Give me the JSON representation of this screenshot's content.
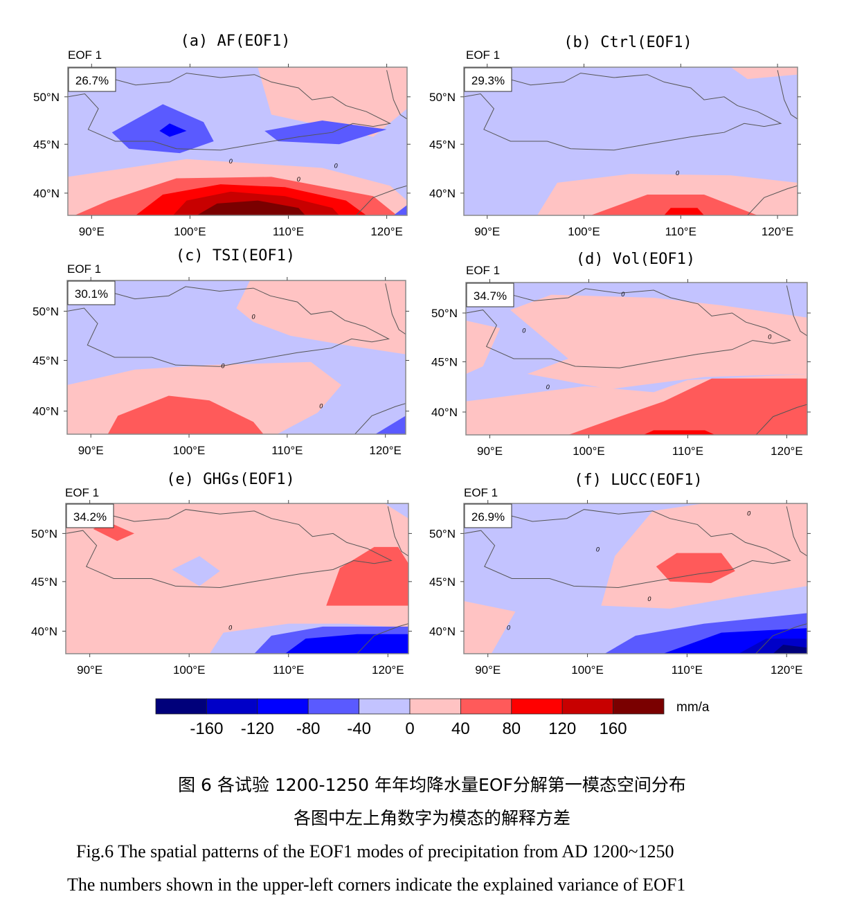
{
  "chart_data": {
    "type": "heatmap",
    "units": "mm/a",
    "eof_label": "EOF 1",
    "x_ticks": [
      "90°E",
      "100°E",
      "110°E",
      "120°E"
    ],
    "y_ticks": [
      "50°N",
      "45°N",
      "40°N"
    ],
    "xlim": [
      88,
      122.5
    ],
    "ylim": [
      37.5,
      53
    ],
    "colorbar": {
      "levels": [
        "-160",
        "-120",
        "-80",
        "-40",
        "0",
        "40",
        "80",
        "120",
        "160"
      ],
      "colors": [
        "#00007a",
        "#0000c8",
        "#0000ff",
        "#5a5aff",
        "#c3c3ff",
        "#ffc3c3",
        "#ff5a5a",
        "#ff0000",
        "#c80000",
        "#7a0000"
      ],
      "unit": "mm/a"
    },
    "panels": [
      {
        "id": "a",
        "title": "(a) AF(EOF1)",
        "variance": "26.7%",
        "contour_labels": [
          "0",
          "0",
          "0"
        ]
      },
      {
        "id": "b",
        "title": "(b) Ctrl(EOF1)",
        "variance": "29.3%",
        "contour_labels": [
          "0"
        ]
      },
      {
        "id": "c",
        "title": "(c) TSI(EOF1)",
        "variance": "30.1%",
        "contour_labels": [
          "0",
          "0",
          "0"
        ]
      },
      {
        "id": "d",
        "title": "(d) Vol(EOF1)",
        "variance": "34.7%",
        "contour_labels": [
          "0",
          "0",
          "0",
          "0"
        ]
      },
      {
        "id": "e",
        "title": "(e) GHGs(EOF1)",
        "variance": "34.2%",
        "contour_labels": [
          "0"
        ]
      },
      {
        "id": "f",
        "title": "(f) LUCC(EOF1)",
        "variance": "26.9%",
        "contour_labels": [
          "0",
          "0",
          "0",
          "0"
        ]
      }
    ]
  },
  "caption": {
    "zh_line1": "图 6  各试验 1200-1250 年年均降水量EOF分解第一模态空间分布",
    "zh_line2": "各图中左上角数字为模态的解释方差",
    "en_line1": "Fig.6 The spatial patterns of the EOF1 modes of precipitation from AD 1200~1250",
    "en_line2": "The numbers shown in the upper-left corners indicate the explained variance of EOF1"
  }
}
